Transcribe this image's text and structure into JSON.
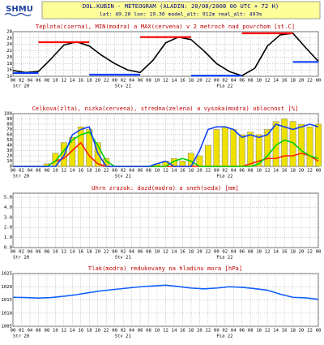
{
  "header": {
    "logo": "SHMU",
    "title": "DOL.KUBIN - METEOGRAM (ALADIN: 20/08/2008 00 UTC + 72 H)",
    "subtitle": "lat: 49.20  lon: 19.30  model_alt: 912m  real_alt: 497m"
  },
  "x_axis": {
    "xlim": [
      0,
      72
    ],
    "xticks": [
      {
        "value": 0,
        "label": "00"
      },
      {
        "value": 2,
        "label": "02"
      },
      {
        "value": 4,
        "label": "04"
      },
      {
        "value": 6,
        "label": "06"
      },
      {
        "value": 8,
        "label": "08"
      },
      10,
      12,
      14,
      16,
      18,
      20,
      22,
      {
        "value": 24,
        "label": "00"
      },
      {
        "value": 26,
        "label": "02"
      },
      {
        "value": 28,
        "label": "04"
      },
      {
        "value": 30,
        "label": "06"
      },
      {
        "value": 32,
        "label": "08"
      },
      {
        "value": 34,
        "label": "10"
      },
      {
        "value": 36,
        "label": "12"
      },
      {
        "value": 38,
        "label": "14"
      },
      {
        "value": 40,
        "label": "16"
      },
      {
        "value": 42,
        "label": "18"
      },
      {
        "value": 44,
        "label": "20"
      },
      {
        "value": 46,
        "label": "22"
      },
      {
        "value": 48,
        "label": "00"
      },
      {
        "value": 50,
        "label": "02"
      },
      {
        "value": 52,
        "label": "04"
      },
      {
        "value": 54,
        "label": "06"
      },
      {
        "value": 56,
        "label": "08"
      },
      {
        "value": 58,
        "label": "10"
      },
      {
        "value": 60,
        "label": "12"
      },
      {
        "value": 62,
        "label": "14"
      },
      {
        "value": 64,
        "label": "16"
      },
      {
        "value": 66,
        "label": "18"
      },
      {
        "value": 68,
        "label": "20"
      },
      {
        "value": 70,
        "label": "22"
      },
      {
        "value": 72,
        "label": "00"
      }
    ],
    "day_labels": [
      {
        "value": 0,
        "label": "Str 20"
      },
      {
        "value": 24,
        "label": "Stv 21"
      },
      {
        "value": 48,
        "label": "Pia 22"
      }
    ]
  },
  "chart_data": [
    {
      "type": "line",
      "title": "Teplota(cierna), MIN(modra) a MAX(cervena) v 2 metroch nad povrchom [st.C]",
      "ylim": [
        14,
        28
      ],
      "yticks": [
        14,
        16,
        18,
        20,
        22,
        24,
        26,
        28
      ],
      "grid": true,
      "series": [
        {
          "kind": "line",
          "color": "#000000",
          "x": [
            0,
            3,
            6,
            9,
            12,
            15,
            18,
            21,
            24,
            27,
            30,
            33,
            36,
            39,
            42,
            45,
            48,
            51,
            54,
            57,
            60,
            63,
            66,
            69,
            72
          ],
          "values": [
            15.8,
            15.2,
            15.5,
            19.5,
            23.8,
            24.8,
            23.5,
            20.5,
            18,
            16,
            15.2,
            19,
            24.5,
            26.3,
            25.5,
            22,
            18,
            15.5,
            14.2,
            16.5,
            23.5,
            27,
            27.5,
            23,
            18.7
          ]
        },
        {
          "kind": "segments",
          "color": "#1040ff",
          "segments": [
            {
              "x": [
                0,
                6
              ],
              "value": 15
            },
            {
              "x": [
                18,
                30
              ],
              "value": 14.5
            },
            {
              "x": [
                42,
                54
              ],
              "value": 14.2
            },
            {
              "x": [
                66,
                72
              ],
              "value": 18.5
            }
          ]
        },
        {
          "kind": "segments",
          "color": "#ff0000",
          "segments": [
            {
              "x": [
                6,
                18
              ],
              "value": 24.7
            },
            {
              "x": [
                30,
                42
              ],
              "value": 26.3
            },
            {
              "x": [
                54,
                66
              ],
              "value": 27.5
            }
          ]
        }
      ]
    },
    {
      "type": "bar",
      "title": "Celkova(zlta), nizka(cervena), stredna(zelena) a vysoka(modra) oblacnost [%]",
      "ylim": [
        0,
        100
      ],
      "yticks": [
        0,
        10,
        20,
        30,
        40,
        50,
        60,
        70,
        80,
        90,
        100
      ],
      "grid": true,
      "x": [
        0,
        2,
        4,
        6,
        8,
        10,
        12,
        14,
        16,
        18,
        20,
        22,
        24,
        26,
        28,
        30,
        32,
        34,
        36,
        38,
        40,
        42,
        44,
        46,
        48,
        50,
        52,
        54,
        56,
        58,
        60,
        62,
        64,
        66,
        68,
        70,
        72
      ],
      "series": [
        {
          "kind": "bar",
          "color": "#f0e000",
          "values": [
            0,
            0,
            0,
            0,
            5,
            25,
            45,
            55,
            75,
            70,
            45,
            15,
            0,
            0,
            0,
            0,
            0,
            5,
            10,
            15,
            10,
            25,
            20,
            40,
            70,
            75,
            70,
            60,
            65,
            60,
            70,
            85,
            90,
            85,
            80,
            75,
            80
          ]
        },
        {
          "kind": "line",
          "color": "#ff2000",
          "values": [
            0,
            0,
            0,
            0,
            0,
            10,
            15,
            30,
            45,
            20,
            5,
            0,
            0,
            0,
            0,
            0,
            0,
            0,
            0,
            0,
            0,
            0,
            0,
            0,
            0,
            0,
            0,
            0,
            5,
            10,
            15,
            15,
            20,
            20,
            25,
            20,
            10
          ]
        },
        {
          "kind": "line",
          "color": "#00d000",
          "values": [
            0,
            0,
            0,
            0,
            0,
            10,
            30,
            50,
            60,
            65,
            40,
            10,
            0,
            0,
            0,
            0,
            0,
            0,
            0,
            10,
            15,
            10,
            0,
            0,
            0,
            0,
            0,
            0,
            0,
            5,
            20,
            40,
            50,
            45,
            30,
            20,
            15
          ]
        },
        {
          "kind": "line",
          "color": "#1040ff",
          "values": [
            0,
            0,
            0,
            0,
            0,
            0,
            20,
            60,
            70,
            75,
            25,
            0,
            0,
            0,
            0,
            0,
            0,
            5,
            10,
            0,
            0,
            0,
            30,
            70,
            75,
            75,
            70,
            55,
            60,
            55,
            60,
            80,
            75,
            70,
            75,
            80,
            75
          ]
        }
      ]
    },
    {
      "type": "line",
      "title": "Uhrn zrazok: dazd(modra) a sneh(seda) [mm]",
      "ylim": [
        0,
        5.4
      ],
      "yticks": [
        {
          "value": 0,
          "label": "0.0"
        },
        {
          "value": 1,
          "label": "1.0"
        },
        {
          "value": 2,
          "label": "2.0"
        },
        {
          "value": 3,
          "label": "3.0"
        },
        {
          "value": 4,
          "label": "4.0"
        },
        {
          "value": 5,
          "label": "5.0"
        }
      ],
      "grid": true,
      "series": []
    },
    {
      "type": "line",
      "title": "Tlak(modra) redukovany na hladinu mora [hPa]",
      "ylim": [
        1005,
        1025
      ],
      "yticks": [
        1005,
        1010,
        1015,
        1020,
        1025
      ],
      "grid": true,
      "series": [
        {
          "kind": "line",
          "color": "#1060ff",
          "x": [
            0,
            3,
            6,
            9,
            12,
            15,
            18,
            21,
            24,
            27,
            30,
            33,
            36,
            39,
            42,
            45,
            48,
            51,
            54,
            57,
            60,
            63,
            66,
            69,
            72
          ],
          "values": [
            1016,
            1015.9,
            1015.7,
            1015.9,
            1016.4,
            1017,
            1017.8,
            1018.5,
            1019,
            1019.5,
            1020,
            1020.3,
            1020.6,
            1020.1,
            1019.5,
            1019.2,
            1019.5,
            1020,
            1019.8,
            1019.3,
            1018.7,
            1017.2,
            1016,
            1015.8,
            1015.2
          ]
        }
      ]
    }
  ]
}
